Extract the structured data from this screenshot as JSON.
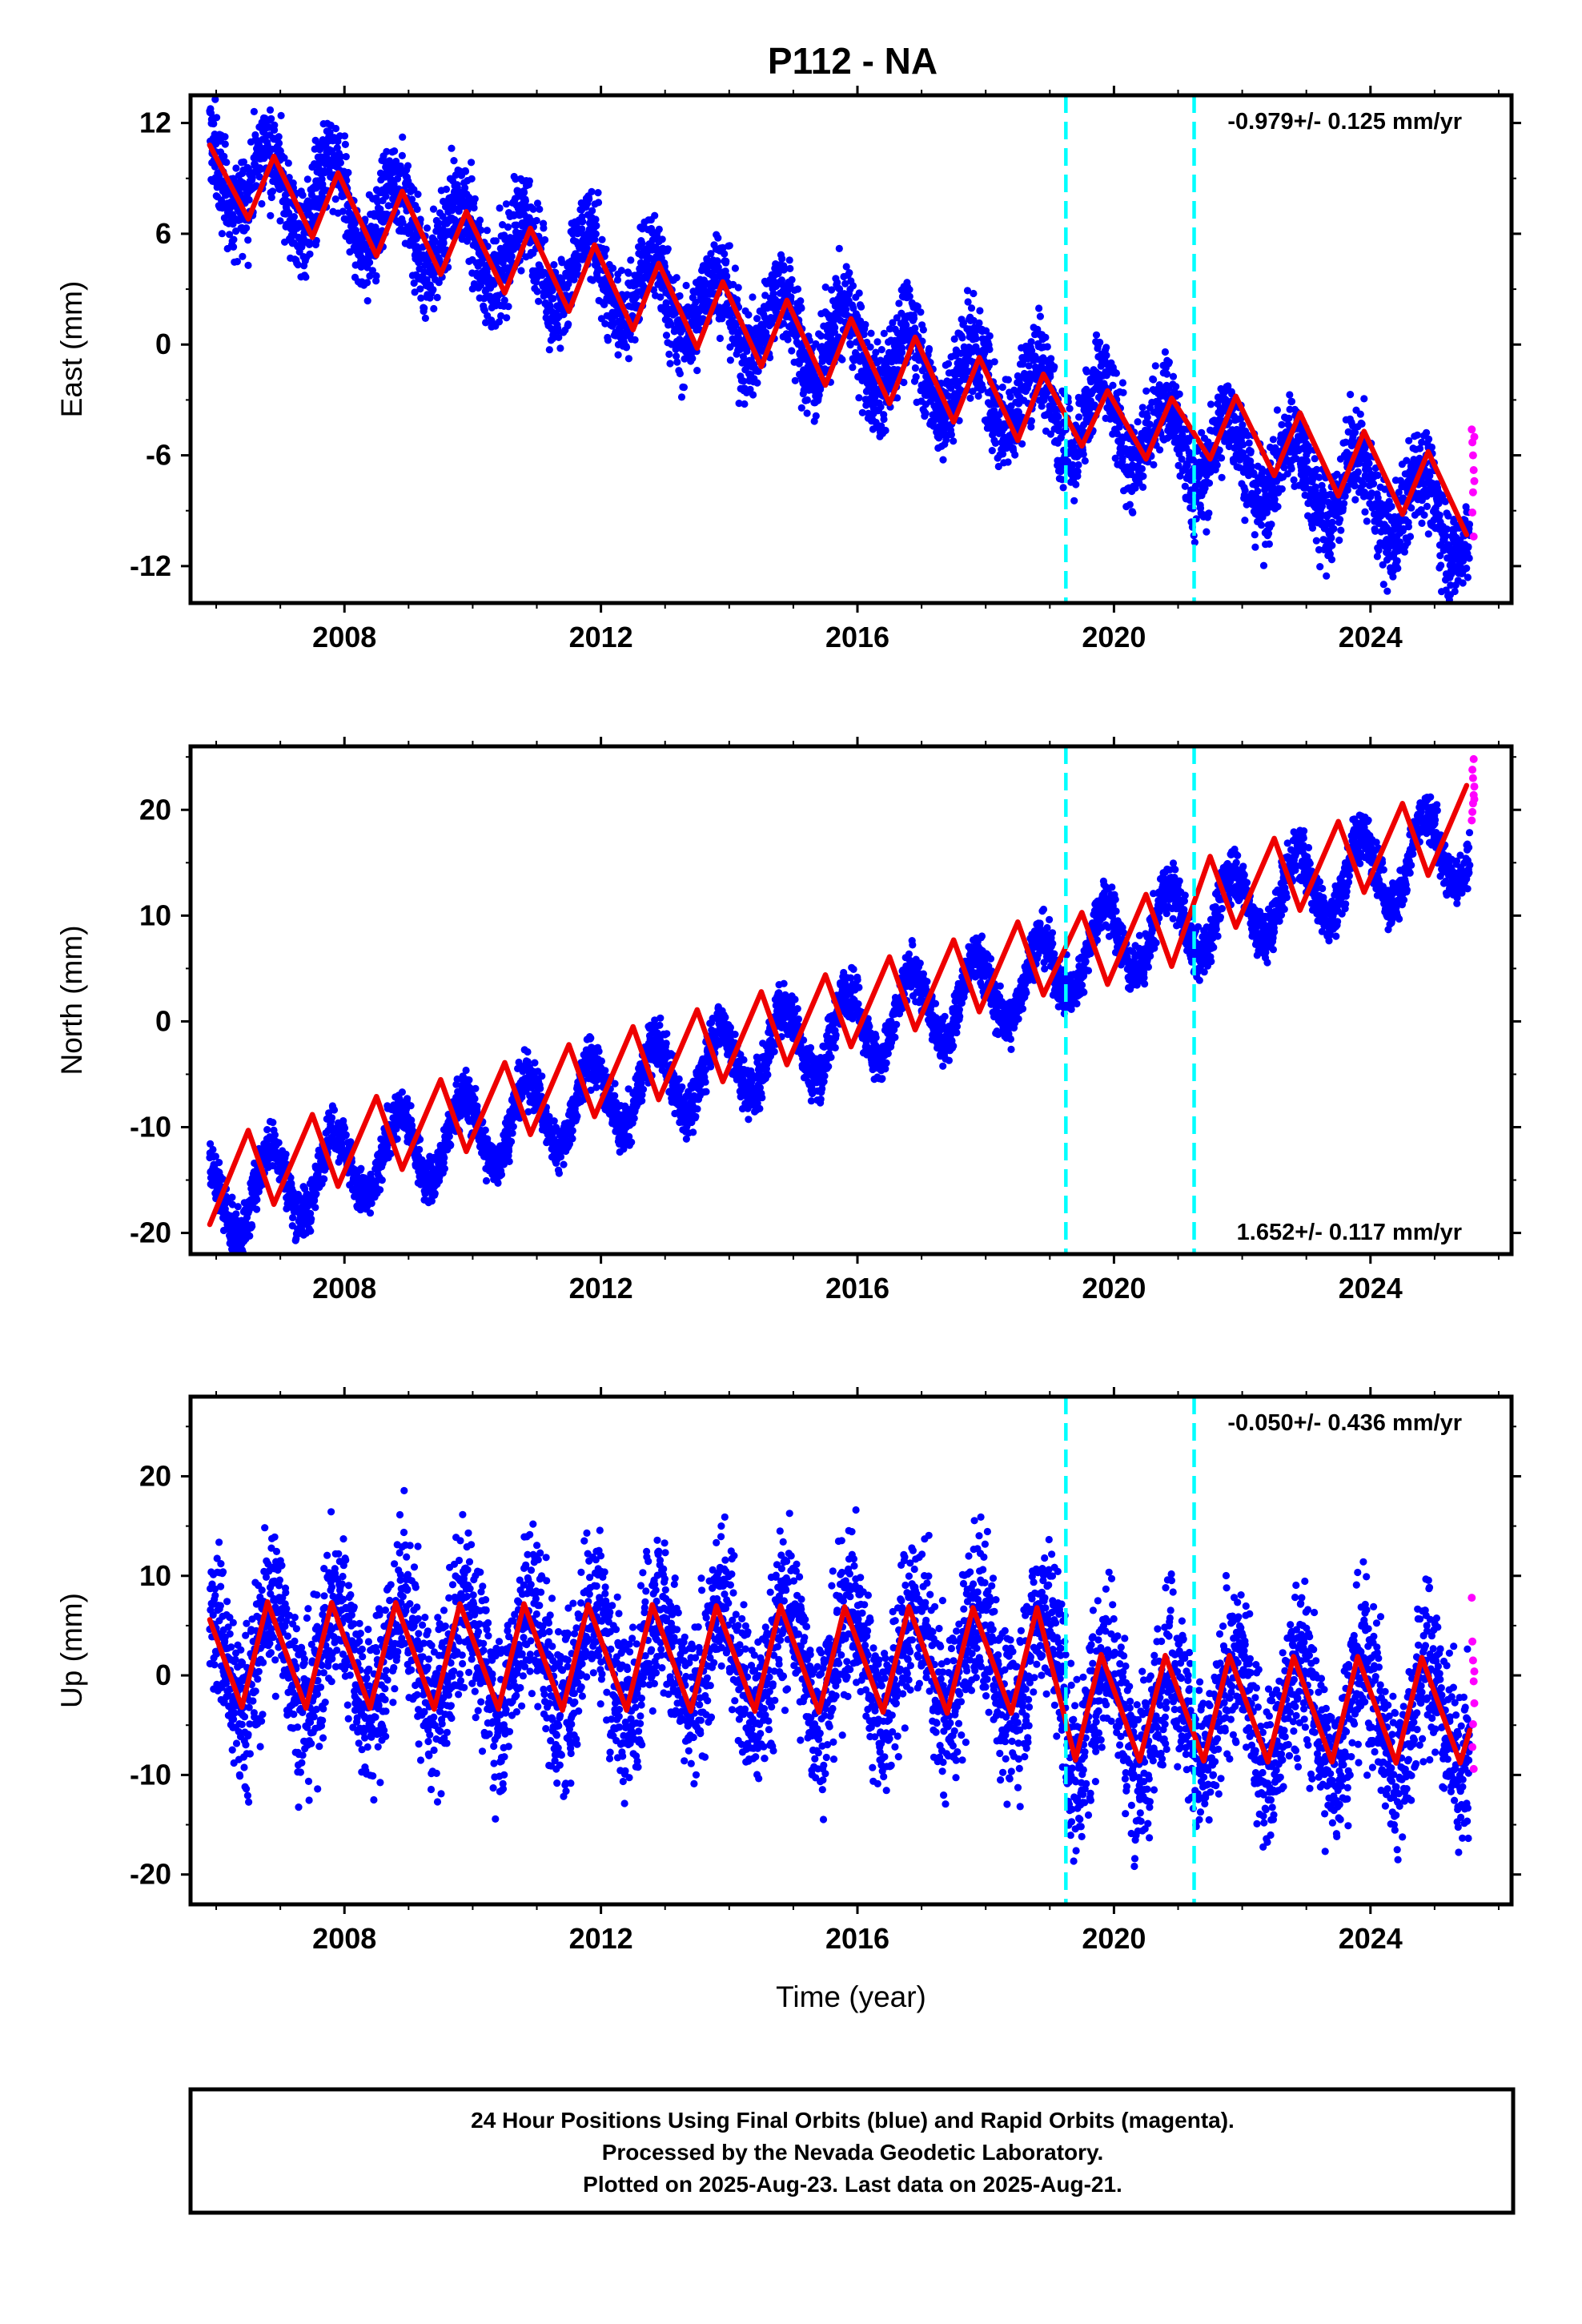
{
  "title": "P112 - NA",
  "chart_data": [
    {
      "type": "scatter",
      "component": "East",
      "ylabel": "East (mm)",
      "xlabel": "",
      "xlim": [
        2005.6,
        2026.2
      ],
      "ylim": [
        -14,
        13.5
      ],
      "xticks": [
        2008,
        2012,
        2016,
        2020,
        2024
      ],
      "xtick_labels": [
        "2008",
        "2012",
        "2016",
        "2020",
        "2024"
      ],
      "yticks": [
        12,
        6,
        0,
        -6,
        -12
      ],
      "ytick_labels": [
        "12",
        "6",
        "0",
        "-6",
        "-12"
      ],
      "rate_label": "-0.979+/- 0.125 mm/yr",
      "rate_position": "top-right",
      "offset_lines": [
        2019.25,
        2021.25
      ],
      "model": {
        "start": 2005.9,
        "end": 2025.55,
        "base": 9.5,
        "slope": -0.979,
        "amp": 2.1,
        "phase": 0.55,
        "noise": 1.3,
        "break": 0.0
      },
      "fit_points": [
        {
          "x": 2005.9,
          "y": 10.8
        },
        {
          "x": 2006.5,
          "y": 6.8
        },
        {
          "x": 2006.9,
          "y": 10.2
        },
        {
          "x": 2007.5,
          "y": 5.8
        },
        {
          "x": 2007.9,
          "y": 9.3
        },
        {
          "x": 2008.5,
          "y": 4.8
        },
        {
          "x": 2008.9,
          "y": 8.3
        },
        {
          "x": 2009.5,
          "y": 3.8
        },
        {
          "x": 2009.9,
          "y": 7.2
        },
        {
          "x": 2010.5,
          "y": 2.8
        },
        {
          "x": 2010.9,
          "y": 6.3
        },
        {
          "x": 2011.5,
          "y": 1.8
        },
        {
          "x": 2011.9,
          "y": 5.4
        },
        {
          "x": 2012.5,
          "y": 0.8
        },
        {
          "x": 2012.9,
          "y": 4.4
        },
        {
          "x": 2013.5,
          "y": -0.2
        },
        {
          "x": 2013.9,
          "y": 3.4
        },
        {
          "x": 2014.5,
          "y": -1.2
        },
        {
          "x": 2014.9,
          "y": 2.4
        },
        {
          "x": 2015.5,
          "y": -2.2
        },
        {
          "x": 2015.9,
          "y": 1.4
        },
        {
          "x": 2016.5,
          "y": -3.2
        },
        {
          "x": 2016.9,
          "y": 0.4
        },
        {
          "x": 2017.5,
          "y": -4.2
        },
        {
          "x": 2017.9,
          "y": -0.7
        },
        {
          "x": 2018.5,
          "y": -5.2
        },
        {
          "x": 2018.9,
          "y": -1.6
        },
        {
          "x": 2019.5,
          "y": -5.5
        },
        {
          "x": 2019.9,
          "y": -2.5
        },
        {
          "x": 2020.5,
          "y": -6.2
        },
        {
          "x": 2020.9,
          "y": -2.9
        },
        {
          "x": 2021.5,
          "y": -6.2
        },
        {
          "x": 2021.9,
          "y": -2.8
        },
        {
          "x": 2022.5,
          "y": -7.1
        },
        {
          "x": 2022.9,
          "y": -3.7
        },
        {
          "x": 2023.5,
          "y": -8.2
        },
        {
          "x": 2023.9,
          "y": -4.7
        },
        {
          "x": 2024.5,
          "y": -9.2
        },
        {
          "x": 2024.9,
          "y": -5.8
        },
        {
          "x": 2025.5,
          "y": -10.3
        }
      ],
      "rapid_points": [
        {
          "x": 2025.58,
          "y": -4.6
        },
        {
          "x": 2025.59,
          "y": -5.3
        },
        {
          "x": 2025.6,
          "y": -6.0
        },
        {
          "x": 2025.61,
          "y": -6.8
        },
        {
          "x": 2025.62,
          "y": -7.4
        },
        {
          "x": 2025.6,
          "y": -8.0
        },
        {
          "x": 2025.59,
          "y": -9.1
        },
        {
          "x": 2025.61,
          "y": -10.4
        },
        {
          "x": 2025.62,
          "y": -5.0
        }
      ]
    },
    {
      "type": "scatter",
      "component": "North",
      "ylabel": "North (mm)",
      "xlabel": "",
      "xlim": [
        2005.6,
        2026.2
      ],
      "ylim": [
        -22,
        26
      ],
      "xticks": [
        2008,
        2012,
        2016,
        2020,
        2024
      ],
      "xtick_labels": [
        "2008",
        "2012",
        "2016",
        "2020",
        "2024"
      ],
      "yticks": [
        20,
        10,
        0,
        -10,
        -20
      ],
      "ytick_labels": [
        "20",
        "10",
        "0",
        "-10",
        "-20"
      ],
      "rate_label": "1.652+/- 0.117 mm/yr",
      "rate_position": "bottom-right",
      "offset_lines": [
        2019.25,
        2021.25
      ],
      "model": {
        "start": 2005.9,
        "end": 2025.55,
        "base": -17.0,
        "slope": 1.652,
        "amp": 3.6,
        "phase": 0.6,
        "noise": 1.2,
        "break": 1.5
      },
      "fit_points": [
        {
          "x": 2005.9,
          "y": -19.2
        },
        {
          "x": 2006.5,
          "y": -10.3
        },
        {
          "x": 2006.9,
          "y": -17.3
        },
        {
          "x": 2007.5,
          "y": -8.8
        },
        {
          "x": 2007.9,
          "y": -15.6
        },
        {
          "x": 2008.5,
          "y": -7.1
        },
        {
          "x": 2008.9,
          "y": -14.0
        },
        {
          "x": 2009.5,
          "y": -5.5
        },
        {
          "x": 2009.9,
          "y": -12.3
        },
        {
          "x": 2010.5,
          "y": -3.9
        },
        {
          "x": 2010.9,
          "y": -10.7
        },
        {
          "x": 2011.5,
          "y": -2.2
        },
        {
          "x": 2011.9,
          "y": -9.0
        },
        {
          "x": 2012.5,
          "y": -0.5
        },
        {
          "x": 2012.9,
          "y": -7.4
        },
        {
          "x": 2013.5,
          "y": 1.1
        },
        {
          "x": 2013.9,
          "y": -5.7
        },
        {
          "x": 2014.5,
          "y": 2.8
        },
        {
          "x": 2014.9,
          "y": -4.1
        },
        {
          "x": 2015.5,
          "y": 4.4
        },
        {
          "x": 2015.9,
          "y": -2.4
        },
        {
          "x": 2016.5,
          "y": 6.1
        },
        {
          "x": 2016.9,
          "y": -0.8
        },
        {
          "x": 2017.5,
          "y": 7.7
        },
        {
          "x": 2017.9,
          "y": 0.9
        },
        {
          "x": 2018.5,
          "y": 9.4
        },
        {
          "x": 2018.9,
          "y": 2.5
        },
        {
          "x": 2019.5,
          "y": 10.3
        },
        {
          "x": 2019.9,
          "y": 3.5
        },
        {
          "x": 2020.5,
          "y": 12.0
        },
        {
          "x": 2020.9,
          "y": 5.2
        },
        {
          "x": 2021.5,
          "y": 15.6
        },
        {
          "x": 2021.9,
          "y": 8.9
        },
        {
          "x": 2022.5,
          "y": 17.3
        },
        {
          "x": 2022.9,
          "y": 10.5
        },
        {
          "x": 2023.5,
          "y": 18.9
        },
        {
          "x": 2023.9,
          "y": 12.2
        },
        {
          "x": 2024.5,
          "y": 20.6
        },
        {
          "x": 2024.9,
          "y": 13.8
        },
        {
          "x": 2025.5,
          "y": 22.3
        }
      ],
      "rapid_points": [
        {
          "x": 2025.58,
          "y": 19.0
        },
        {
          "x": 2025.59,
          "y": 19.8
        },
        {
          "x": 2025.6,
          "y": 20.6
        },
        {
          "x": 2025.61,
          "y": 21.4
        },
        {
          "x": 2025.62,
          "y": 22.2
        },
        {
          "x": 2025.6,
          "y": 23.0
        },
        {
          "x": 2025.59,
          "y": 23.8
        },
        {
          "x": 2025.61,
          "y": 24.8
        },
        {
          "x": 2025.62,
          "y": 21.0
        }
      ]
    },
    {
      "type": "scatter",
      "component": "Up",
      "ylabel": "Up (mm)",
      "xlabel": "Time (year)",
      "xlim": [
        2005.6,
        2026.2
      ],
      "ylim": [
        -23,
        28
      ],
      "xticks": [
        2008,
        2012,
        2016,
        2020,
        2024
      ],
      "xtick_labels": [
        "2008",
        "2012",
        "2016",
        "2020",
        "2024"
      ],
      "yticks": [
        20,
        10,
        0,
        -10,
        -20
      ],
      "ytick_labels": [
        "20",
        "10",
        "0",
        "-10",
        "-20"
      ],
      "rate_label": "-0.050+/- 0.436 mm/yr",
      "rate_position": "top-right",
      "offset_lines": [
        2019.25,
        2021.25
      ],
      "model": {
        "start": 2005.9,
        "end": 2025.55,
        "base": 2.0,
        "slope": -0.05,
        "amp": 5.4,
        "phase": 0.65,
        "noise": 4.2,
        "break": -5.2
      },
      "fit_points": [
        {
          "x": 2005.9,
          "y": 5.6
        },
        {
          "x": 2006.4,
          "y": -3.2
        },
        {
          "x": 2006.8,
          "y": 7.4
        },
        {
          "x": 2007.4,
          "y": -3.3
        },
        {
          "x": 2007.8,
          "y": 7.3
        },
        {
          "x": 2008.4,
          "y": -3.3
        },
        {
          "x": 2008.8,
          "y": 7.3
        },
        {
          "x": 2009.4,
          "y": -3.4
        },
        {
          "x": 2009.8,
          "y": 7.2
        },
        {
          "x": 2010.4,
          "y": -3.4
        },
        {
          "x": 2010.8,
          "y": 7.2
        },
        {
          "x": 2011.4,
          "y": -3.5
        },
        {
          "x": 2011.8,
          "y": 7.1
        },
        {
          "x": 2012.4,
          "y": -3.5
        },
        {
          "x": 2012.8,
          "y": 7.1
        },
        {
          "x": 2013.4,
          "y": -3.6
        },
        {
          "x": 2013.8,
          "y": 7.0
        },
        {
          "x": 2014.4,
          "y": -3.6
        },
        {
          "x": 2014.8,
          "y": 7.0
        },
        {
          "x": 2015.4,
          "y": -3.7
        },
        {
          "x": 2015.8,
          "y": 6.9
        },
        {
          "x": 2016.4,
          "y": -3.7
        },
        {
          "x": 2016.8,
          "y": 6.9
        },
        {
          "x": 2017.4,
          "y": -3.8
        },
        {
          "x": 2017.8,
          "y": 6.8
        },
        {
          "x": 2018.4,
          "y": -3.8
        },
        {
          "x": 2018.8,
          "y": 6.8
        },
        {
          "x": 2019.4,
          "y": -8.5
        },
        {
          "x": 2019.8,
          "y": 2.1
        },
        {
          "x": 2020.4,
          "y": -8.6
        },
        {
          "x": 2020.8,
          "y": 2.0
        },
        {
          "x": 2021.4,
          "y": -8.6
        },
        {
          "x": 2021.8,
          "y": 2.0
        },
        {
          "x": 2022.4,
          "y": -8.7
        },
        {
          "x": 2022.8,
          "y": 1.9
        },
        {
          "x": 2023.4,
          "y": -8.7
        },
        {
          "x": 2023.8,
          "y": 1.9
        },
        {
          "x": 2024.4,
          "y": -8.8
        },
        {
          "x": 2024.8,
          "y": 1.8
        },
        {
          "x": 2025.4,
          "y": -8.8
        },
        {
          "x": 2025.55,
          "y": -5.5
        }
      ],
      "rapid_points": [
        {
          "x": 2025.58,
          "y": 7.8
        },
        {
          "x": 2025.59,
          "y": 3.4
        },
        {
          "x": 2025.6,
          "y": 1.5
        },
        {
          "x": 2025.61,
          "y": -0.6
        },
        {
          "x": 2025.62,
          "y": -2.8
        },
        {
          "x": 2025.6,
          "y": -4.9
        },
        {
          "x": 2025.59,
          "y": -7.2
        },
        {
          "x": 2025.61,
          "y": -9.4
        },
        {
          "x": 2025.62,
          "y": 0.4
        }
      ]
    }
  ],
  "colors": {
    "final_orbits": "#0000ff",
    "rapid_orbits": "#ff00ff",
    "fit": "#ee0000",
    "offset_line": "#00ffff",
    "frame": "#000000"
  },
  "caption": {
    "lines": [
      "24 Hour Positions Using Final Orbits (blue) and Rapid Orbits (magenta).",
      "Processed by the Nevada Geodetic Laboratory.",
      "Plotted on 2025-Aug-23. Last data on 2025-Aug-21."
    ]
  }
}
